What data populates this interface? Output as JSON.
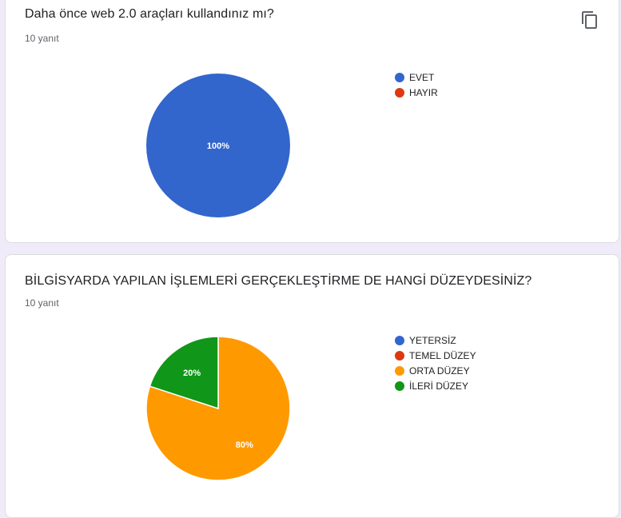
{
  "questions": [
    {
      "title": "Daha önce web 2.0 araçları kullandınız mı?",
      "responses": "10 yanıt",
      "copy_icon": "copy-icon",
      "chart_data": {
        "type": "pie",
        "categories": [
          "EVET",
          "HAYIR"
        ],
        "values": [
          100,
          0
        ],
        "labels": [
          "100%",
          ""
        ],
        "colors": [
          "#3366cc",
          "#dc3912"
        ],
        "legend_position": "right"
      }
    },
    {
      "title": "BİLGİSYARDA YAPILAN İŞLEMLERİ GERÇEKLEŞTİRME DE HANGİ DÜZEYDESİNİZ?",
      "responses": "10 yanıt",
      "chart_data": {
        "type": "pie",
        "categories": [
          "YETERSİZ",
          "TEMEL DÜZEY",
          "ORTA DÜZEY",
          "İLERİ DÜZEY"
        ],
        "values": [
          0,
          0,
          80,
          20
        ],
        "labels": [
          "",
          "",
          "80%",
          "20%"
        ],
        "colors": [
          "#3366cc",
          "#dc3912",
          "#ff9900",
          "#109618"
        ],
        "legend_position": "right"
      }
    }
  ]
}
